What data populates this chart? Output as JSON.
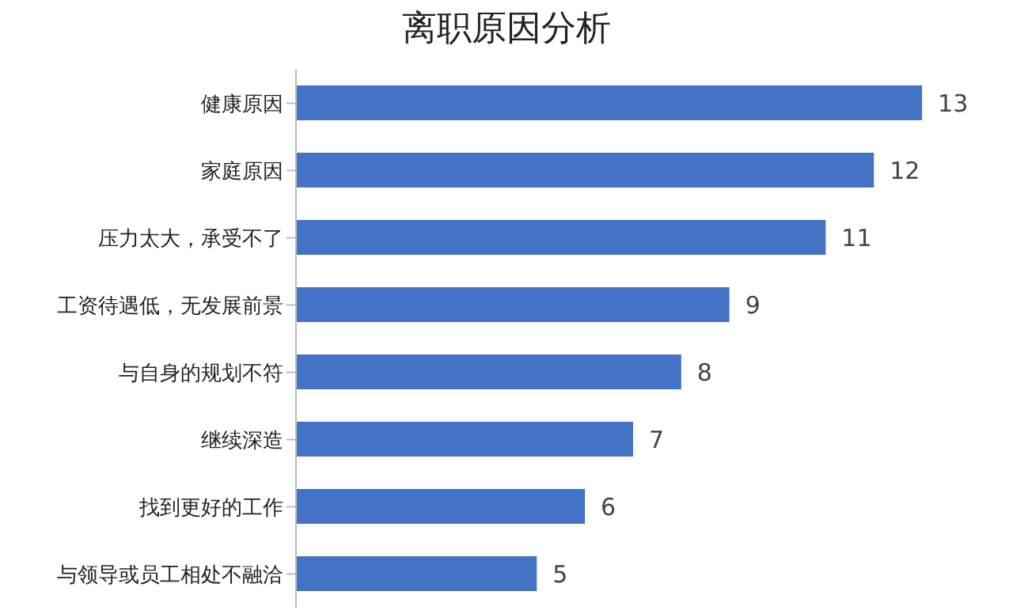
{
  "chart_data": {
    "type": "bar",
    "orientation": "horizontal",
    "title": "离职原因分析",
    "categories": [
      "健康原因",
      "家庭原因",
      "压力太大，承受不了",
      "工资待遇低，无发展前景",
      "与自身的规划不符",
      "继续深造",
      "找到更好的工作",
      "与领导或员工相处不融洽"
    ],
    "values": [
      13,
      12,
      11,
      9,
      8,
      7,
      6,
      5
    ],
    "color": "#4472c4",
    "data_labels": true
  }
}
